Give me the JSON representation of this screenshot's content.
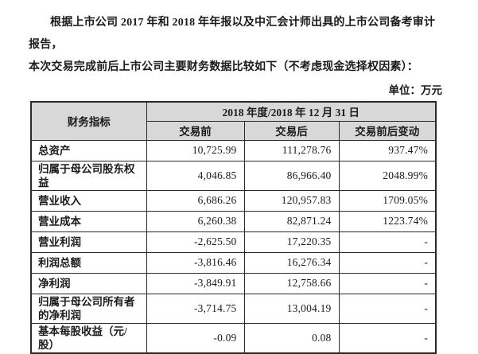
{
  "page": {
    "paragraph": {
      "line1": "根据上市公司 2017 年和 2018 年年报以及中汇会计师出具的上市公司备考审计报告，",
      "line2": "本次交易完成前后上市公司主要财务数据比较如下（不考虑现金选择权因素）："
    },
    "unit_label": "单位：万元"
  },
  "table": {
    "header": {
      "indicator": "财务指标",
      "period": "2018 年度/2018 年 12 月 31 日",
      "columns": [
        "交易前",
        "交易后",
        "交易前后变动"
      ]
    },
    "rows": [
      {
        "label": "总资产",
        "before": "10,725.99",
        "after": "111,278.76",
        "change": "937.47%"
      },
      {
        "label": "归属于母公司股东权益",
        "before": "4,046.85",
        "after": "86,966.40",
        "change": "2048.99%"
      },
      {
        "label": "营业收入",
        "before": "6,686.26",
        "after": "120,957.83",
        "change": "1709.05%"
      },
      {
        "label": "营业成本",
        "before": "6,260.38",
        "after": "82,871.24",
        "change": "1223.74%"
      },
      {
        "label": "营业利润",
        "before": "-2,625.50",
        "after": "17,220.35",
        "change": "-"
      },
      {
        "label": "利润总额",
        "before": "-3,816.46",
        "after": "16,276.34",
        "change": "-"
      },
      {
        "label": "净利润",
        "before": "-3,849.91",
        "after": "12,758.66",
        "change": "-"
      },
      {
        "label": "归属于母公司所有者的净利润",
        "before": "-3,714.75",
        "after": "13,004.19",
        "change": "-"
      },
      {
        "label": "基本每股收益（元/股）",
        "before": "-0.09",
        "after": "0.08",
        "change": "-"
      }
    ],
    "colors": {
      "header_bg": "#d8d8d8",
      "border": "#2a2a2a",
      "text": "#1b1b1b",
      "page_bg": "#ffffff"
    }
  }
}
